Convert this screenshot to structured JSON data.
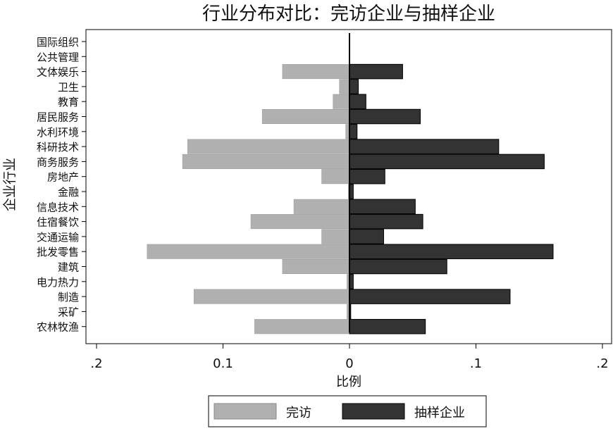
{
  "chart_data": {
    "type": "bar",
    "orientation": "horizontal",
    "title": "行业分布对比：完访企业与抽样企业",
    "xlabel": "比例",
    "ylabel": "企业行业",
    "xlim": [
      -0.2,
      0.2
    ],
    "xticks": [
      -0.2,
      -0.1,
      0,
      0.1,
      0.2
    ],
    "xtick_labels": [
      ".2",
      "0.1",
      "0",
      ".1",
      ".2"
    ],
    "grid": false,
    "legend_position": "bottom",
    "categories": [
      "国际组织",
      "公共管理",
      "文体娱乐",
      "卫生",
      "教育",
      "居民服务",
      "水利环境",
      "科研技术",
      "商务服务",
      "房地产",
      "金融",
      "信息技术",
      "住宿餐饮",
      "交通运输",
      "批发零售",
      "建筑",
      "电力热力",
      "制造",
      "采矿",
      "农林牧渔"
    ],
    "series": [
      {
        "name": "完访",
        "color": "#b0b0b0",
        "direction": "left",
        "values": [
          0.0,
          0.0,
          0.053,
          0.008,
          0.013,
          0.069,
          0.003,
          0.128,
          0.132,
          0.022,
          0.001,
          0.044,
          0.078,
          0.022,
          0.16,
          0.053,
          0.002,
          0.123,
          0.002,
          0.075
        ]
      },
      {
        "name": "抽样企业",
        "color": "#333333",
        "direction": "right",
        "values": [
          0.0,
          0.0,
          0.042,
          0.007,
          0.013,
          0.056,
          0.006,
          0.118,
          0.154,
          0.028,
          0.003,
          0.052,
          0.058,
          0.027,
          0.161,
          0.077,
          0.003,
          0.127,
          0.001,
          0.06
        ]
      }
    ]
  }
}
